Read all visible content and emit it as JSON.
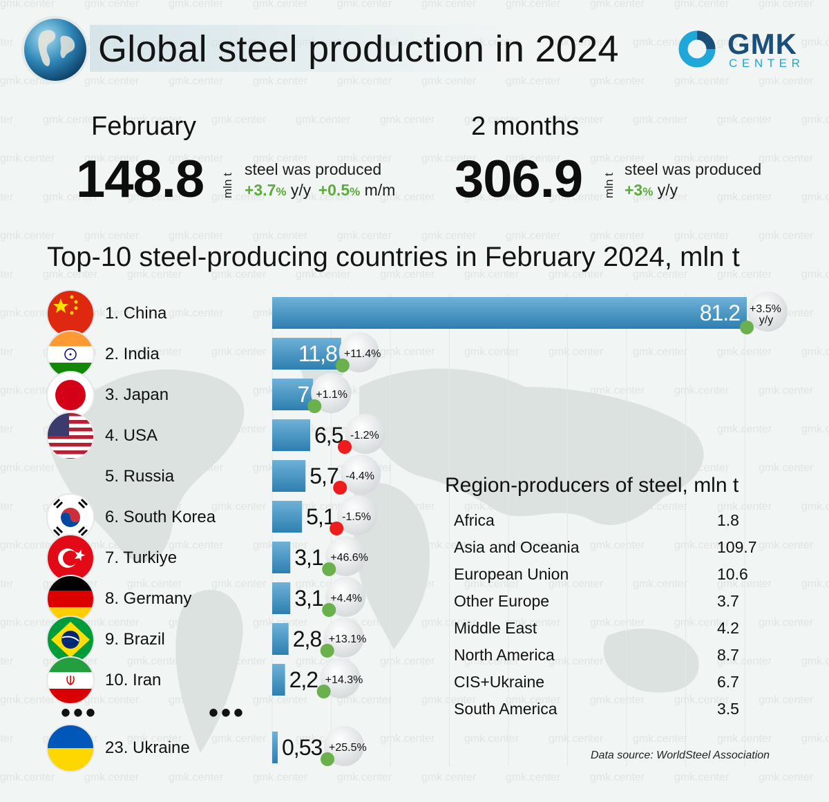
{
  "header": {
    "title": "Global steel production in 2024",
    "logo": {
      "name": "GMK",
      "sub": "CENTER"
    }
  },
  "watermark": "gmk.center",
  "stats": [
    {
      "period": "February",
      "value": "148.8",
      "unit": "mln t",
      "produced": "steel was produced",
      "yy_value": "+3.7",
      "yy_pct": "%",
      "yy_label": "y/y",
      "mm_value": "+0.5",
      "mm_pct": "%",
      "mm_label": "m/m"
    },
    {
      "period": "2 months",
      "value": "306.9",
      "unit": "mln t",
      "produced": "steel was produced",
      "yy_value": "+3",
      "yy_pct": "%",
      "yy_label": "y/y"
    }
  ],
  "colors": {
    "bar_top": "#6fb1d8",
    "bar_bottom": "#2d7fb0",
    "positive": "#6ab04c",
    "negative": "#ee1c1c"
  },
  "chart_data": {
    "type": "bar",
    "orientation": "horizontal",
    "title": "Top-10 steel-producing countries in February 2024, mln t",
    "unit": "mln t",
    "categories": [
      "1. China",
      "2. India",
      "3. Japan",
      "4. USA",
      "5. Russia",
      "6. South Korea",
      "7. Turkiye",
      "8. Germany",
      "9. Brazil",
      "10. Iran",
      "23. Ukraine"
    ],
    "values": [
      81.2,
      11.8,
      7,
      6.5,
      5.7,
      5.1,
      3.1,
      3.1,
      2.8,
      2.2,
      0.53
    ],
    "value_labels": [
      "81.2",
      "11,8",
      "7",
      "6,5",
      "5,7",
      "5,1",
      "3,1",
      "3,1",
      "2,8",
      "2,2",
      "0,53"
    ],
    "yoy_change_pct": [
      3.5,
      11.4,
      1.1,
      -1.2,
      -4.4,
      -1.5,
      46.6,
      4.4,
      13.1,
      14.3,
      25.5
    ],
    "yoy_labels": [
      "+3.5%",
      "+11.4%",
      "+1.1%",
      "-1.2%",
      "-4.4%",
      "-1.5%",
      "+46.6%",
      "+4.4%",
      "+13.1%",
      "+14.3%",
      "+25.5%"
    ],
    "yoy_unit_label": "y/y",
    "xlim": [
      0,
      81.2
    ],
    "grid": true,
    "ellipsis": "•••"
  },
  "regions": {
    "title": "Region-producers of steel, mln t",
    "rows": [
      {
        "name": "Africa",
        "value": "1.8"
      },
      {
        "name": "Asia and Oceania",
        "value": "109.7"
      },
      {
        "name": "European Union",
        "value": "10.6"
      },
      {
        "name": "Other Europe",
        "value": "3.7"
      },
      {
        "name": "Middle East",
        "value": "4.2"
      },
      {
        "name": "North America",
        "value": "8.7"
      },
      {
        "name": "CIS+Ukraine",
        "value": "6.7"
      },
      {
        "name": "South America",
        "value": "3.5"
      }
    ]
  },
  "source": "Data source: WorldSteel Association"
}
